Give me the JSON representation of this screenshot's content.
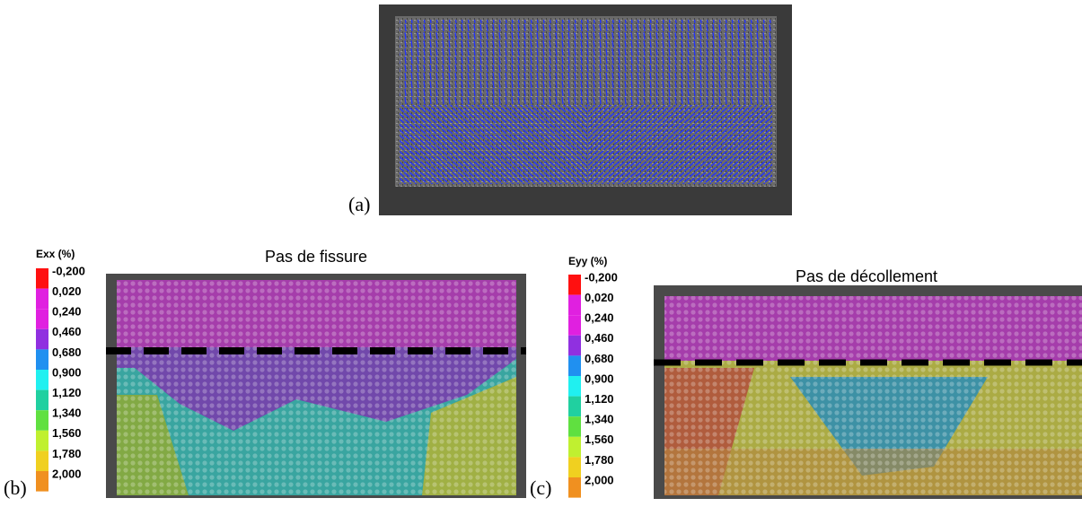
{
  "figure": {
    "panels": [
      {
        "label": "(a)"
      },
      {
        "label": "(b)",
        "title": "Pas de fissure",
        "legend": {
          "title": "Exx (%)",
          "ticks": [
            "-0,200",
            "0,020",
            "0,240",
            "0,460",
            "0,680",
            "0,900",
            "1,120",
            "1,340",
            "1,560",
            "1,780",
            "2,000"
          ]
        }
      },
      {
        "label": "(c)",
        "title": "Pas de décollement",
        "legend": {
          "title": "Eyy (%)",
          "ticks": [
            "-0,200",
            "0,020",
            "0,240",
            "0,460",
            "0,680",
            "0,900",
            "1,120",
            "1,340",
            "1,560",
            "1,780",
            "2,000"
          ]
        }
      }
    ]
  }
}
